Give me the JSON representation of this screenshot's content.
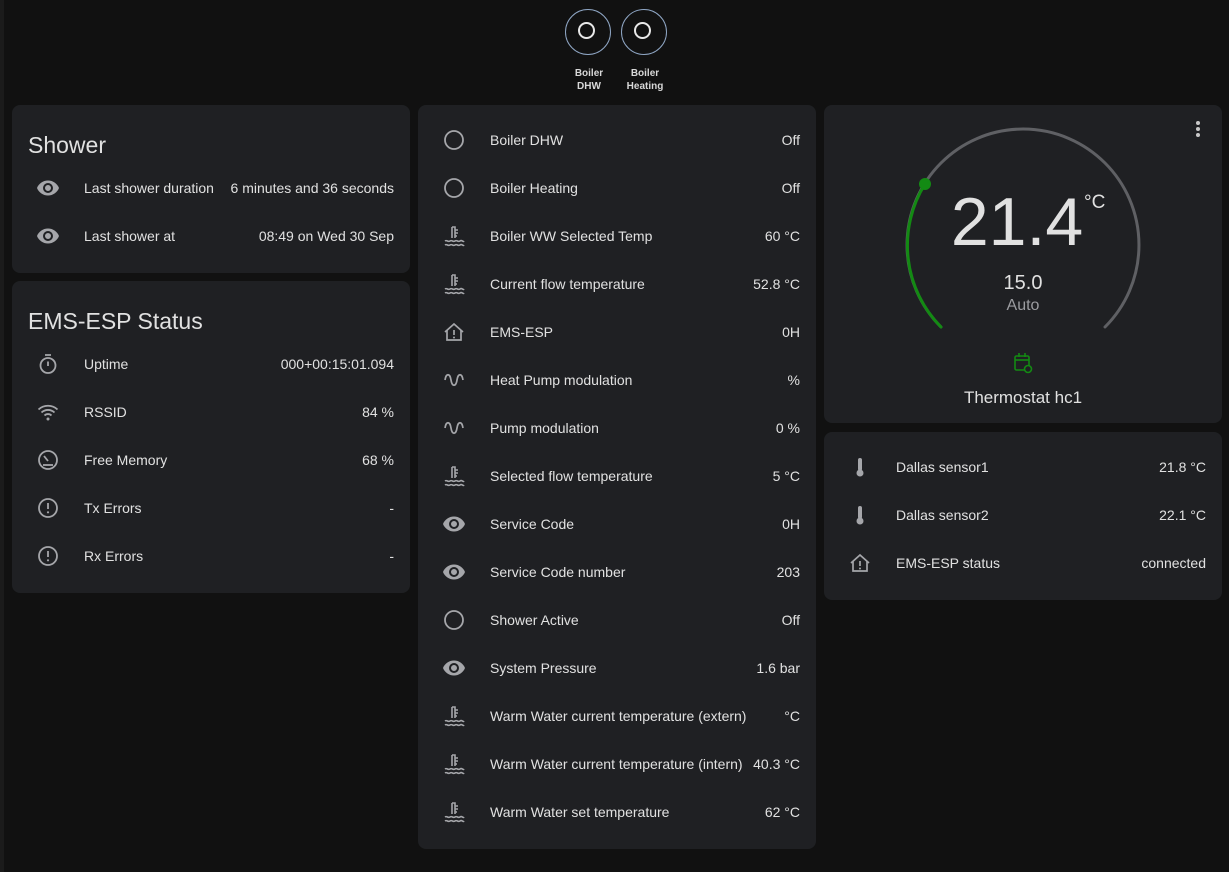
{
  "header": {
    "buttons": [
      "Boiler DHW",
      "Boiler Heating"
    ]
  },
  "shower": {
    "title": "Shower",
    "rows": [
      [
        "Last shower duration",
        "6 minutes and 36 seconds"
      ],
      [
        "Last shower at",
        "08:49 on Wed 30 Sep"
      ]
    ]
  },
  "ems_status": {
    "title": "EMS-ESP Status",
    "rows": [
      [
        "Uptime",
        "000+00:15:01.094"
      ],
      [
        "RSSID",
        "84 %"
      ],
      [
        "Free Memory",
        "68 %"
      ],
      [
        "Tx Errors",
        "-"
      ],
      [
        "Rx Errors",
        "-"
      ]
    ]
  },
  "entities": {
    "rows": [
      [
        "Boiler DHW",
        "Off"
      ],
      [
        "Boiler Heating",
        "Off"
      ],
      [
        "Boiler WW Selected Temp",
        "60 °C"
      ],
      [
        "Current flow temperature",
        "52.8 °C"
      ],
      [
        "EMS-ESP",
        "0H"
      ],
      [
        "Heat Pump modulation",
        "%"
      ],
      [
        "Pump modulation",
        "0 %"
      ],
      [
        "Selected flow temperature",
        "5 °C"
      ],
      [
        "Service Code",
        "0H"
      ],
      [
        "Service Code number",
        "203"
      ],
      [
        "Shower Active",
        "Off"
      ],
      [
        "System Pressure",
        "1.6 bar"
      ],
      [
        "Warm Water current temperature (extern)",
        "°C"
      ],
      [
        "Warm Water current temperature (intern)",
        "40.3 °C"
      ],
      [
        "Warm Water set temperature",
        "62 °C"
      ]
    ]
  },
  "thermostat": {
    "temperature": "21.4",
    "unit": "°C",
    "target": "15.0",
    "mode": "Auto",
    "name": "Thermostat hc1"
  },
  "sensors": {
    "rows": [
      [
        "Dallas sensor1",
        "21.8 °C"
      ],
      [
        "Dallas sensor2",
        "22.1 °C"
      ],
      [
        "EMS-ESP status",
        "connected"
      ]
    ]
  }
}
